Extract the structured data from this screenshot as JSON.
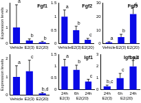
{
  "chart_data": [
    {
      "type": "bar",
      "title": "Fgf1",
      "y_label": "Expression levels",
      "categories": [
        "Vehicle",
        "E2(3)",
        "E2(20)"
      ],
      "values": [
        1,
        0.2,
        0.1
      ],
      "errors": [
        1.4,
        0.1,
        0.05
      ],
      "letters": [
        "a",
        "b",
        "b"
      ],
      "color": "#0a0ae6",
      "ylim": [
        0,
        2.5
      ],
      "yticks": [
        0,
        1,
        2
      ],
      "grid": false
    },
    {
      "type": "bar",
      "title": "Fgf2",
      "categories": [
        "Vehicle",
        "E2(3)",
        "E2(20)"
      ],
      "values": [
        1,
        0.5,
        0.15
      ],
      "errors": [
        0.25,
        0.15,
        0.05
      ],
      "letters": [
        "a",
        "b",
        "c"
      ],
      "color": "#0a0ae6",
      "ylim": [
        0,
        1.5
      ],
      "yticks": [
        0,
        0.5,
        1,
        1.5
      ],
      "grid": false
    },
    {
      "type": "bar",
      "title": "Fgf9",
      "categories": [
        "Vehicle",
        "E2(3)",
        "E2(20)"
      ],
      "values": [
        1,
        5,
        22
      ],
      "errors": [
        0.5,
        2,
        5
      ],
      "letters": [
        "a",
        "b",
        "c"
      ],
      "color": "#0a0ae6",
      "ylim": [
        0,
        30
      ],
      "yticks": [
        0,
        10,
        20,
        30
      ],
      "grid": false
    },
    {
      "type": "bar",
      "y_label": "Expression levels",
      "categories": [
        "Vehicle",
        "E2(3)",
        "E2(20)"
      ],
      "values": [
        1,
        1.3,
        0.1
      ],
      "errors": [
        0.6,
        0.6,
        0.05
      ],
      "letters": [
        "a",
        "c",
        "b,d"
      ],
      "color": "#0a0ae6",
      "ylim": [
        0,
        2.2
      ],
      "yticks": [
        0,
        1,
        2
      ],
      "grid": false
    },
    {
      "type": "bar",
      "title": "Igf1",
      "categories": [
        "24h",
        "6h",
        "24h"
      ],
      "groups": [
        {
          "label": "E2(3)",
          "categories": [
            0
          ]
        },
        {
          "label": "E2(20)",
          "categories": [
            1,
            2
          ]
        }
      ],
      "values": [
        1,
        0.85,
        0.35
      ],
      "errors": [
        0.3,
        0.2,
        0.1
      ],
      "letters": [
        "a",
        "b",
        "c"
      ],
      "color": "#0a0ae6",
      "ylim": [
        0,
        1.5
      ],
      "yticks": [
        0,
        0.5,
        1,
        1.5
      ],
      "grid": false
    },
    {
      "type": "bar",
      "title": "Igfbp3",
      "categories": [
        "24h",
        "6h",
        "24h"
      ],
      "groups": [
        {
          "label": "E2(3)",
          "categories": [
            0
          ]
        },
        {
          "label": "E2(20)",
          "categories": [
            1,
            2
          ]
        }
      ],
      "values": [
        0.3,
        1,
        2
      ],
      "errors": [
        0.1,
        0.4,
        0.5
      ],
      "letters": [
        "b,c",
        "c",
        "a,d"
      ],
      "color": "#0a0ae6",
      "ylim": [
        0,
        3
      ],
      "yticks": [
        0,
        1,
        2,
        3
      ],
      "grid": false
    }
  ]
}
